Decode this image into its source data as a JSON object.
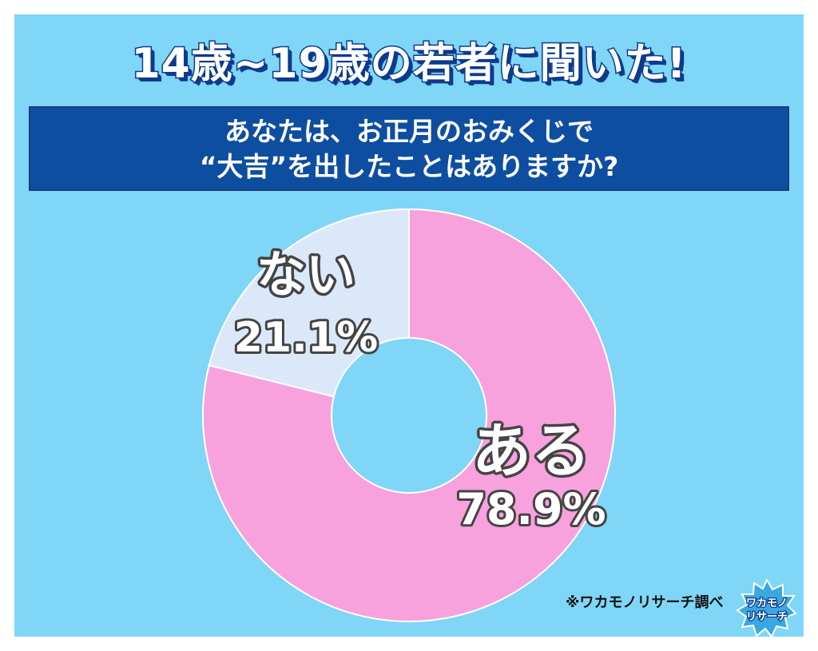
{
  "headline": "14歳~19歳の若者に聞いた!",
  "question": {
    "line1": "あなたは、お正月のおみくじで",
    "line2": "“大吉”を出したことはありますか?"
  },
  "chart_data": {
    "type": "pie",
    "variant": "donut",
    "start_direction": "top",
    "categories": [
      "ある",
      "ない"
    ],
    "values": [
      78.9,
      21.1
    ],
    "value_labels": [
      "78.9%",
      "21.1%"
    ],
    "colors": [
      "#f7a1dd",
      "#dbe8f9"
    ]
  },
  "credit": "※ワカモノリサーチ調べ",
  "logo": {
    "line1": "ワカモノ",
    "line2": "リサーチ"
  },
  "colors": {
    "background": "#7fd6f7",
    "question_box": "#0e4ea1",
    "headline_outline": "#0d3a8c"
  }
}
